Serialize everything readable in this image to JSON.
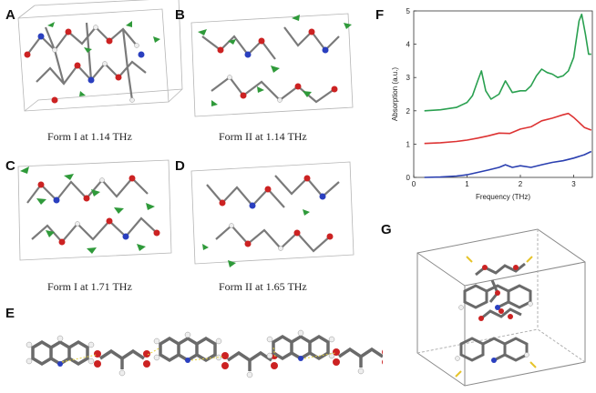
{
  "panels": {
    "a": {
      "letter": "A",
      "caption": "Form I at 1.14 THz"
    },
    "b": {
      "letter": "B",
      "caption": "Form II at 1.14 THz"
    },
    "c": {
      "letter": "C",
      "caption": "Form I at 1.71 THz"
    },
    "d": {
      "letter": "D",
      "caption": "Form II at 1.65 THz"
    },
    "e": {
      "letter": "E"
    },
    "f": {
      "letter": "F"
    },
    "g": {
      "letter": "G"
    }
  },
  "colors": {
    "atom_carbon": "#8a8a8a",
    "atom_hydrogen": "#eeeeee",
    "atom_oxygen": "#cc2222",
    "atom_nitrogen": "#2a3fbf",
    "vibration_arrow": "#2f9a3a",
    "hbond": "#e6d23a",
    "cell_box": "#9a9a9a"
  },
  "chart_data": {
    "type": "line",
    "xlabel": "Frequency (THz)",
    "ylabel": "Absorption (a.u.)",
    "xlim": [
      0,
      3.35
    ],
    "ylim": [
      0,
      5
    ],
    "xticks": [
      "0",
      "1",
      "2",
      "3"
    ],
    "yticks": [
      "0",
      "1",
      "2",
      "3",
      "4",
      "5"
    ],
    "grid": false,
    "series": [
      {
        "color": "#2aa050",
        "x": [
          0.2,
          0.5,
          0.8,
          1.0,
          1.1,
          1.2,
          1.27,
          1.35,
          1.45,
          1.6,
          1.72,
          1.85,
          2.0,
          2.1,
          2.2,
          2.3,
          2.4,
          2.5,
          2.6,
          2.7,
          2.8,
          2.9,
          3.0,
          3.1,
          3.15,
          3.22,
          3.28,
          3.33
        ],
        "y": [
          2.0,
          2.03,
          2.1,
          2.25,
          2.45,
          2.9,
          3.2,
          2.6,
          2.35,
          2.5,
          2.9,
          2.55,
          2.6,
          2.6,
          2.75,
          3.05,
          3.25,
          3.15,
          3.1,
          3.0,
          3.05,
          3.2,
          3.6,
          4.7,
          4.9,
          4.3,
          3.7,
          3.7
        ]
      },
      {
        "color": "#dd3333",
        "x": [
          0.2,
          0.5,
          0.8,
          1.0,
          1.2,
          1.4,
          1.6,
          1.8,
          2.0,
          2.2,
          2.4,
          2.6,
          2.8,
          2.9,
          3.0,
          3.1,
          3.2,
          3.33
        ],
        "y": [
          1.02,
          1.04,
          1.08,
          1.12,
          1.18,
          1.25,
          1.33,
          1.32,
          1.45,
          1.52,
          1.7,
          1.78,
          1.88,
          1.92,
          1.8,
          1.65,
          1.5,
          1.42
        ]
      },
      {
        "color": "#2a3fb0",
        "x": [
          0.2,
          0.5,
          0.8,
          1.0,
          1.2,
          1.4,
          1.6,
          1.72,
          1.85,
          2.0,
          2.2,
          2.4,
          2.6,
          2.8,
          3.0,
          3.2,
          3.33
        ],
        "y": [
          0.0,
          0.01,
          0.04,
          0.08,
          0.15,
          0.22,
          0.3,
          0.38,
          0.3,
          0.35,
          0.3,
          0.38,
          0.45,
          0.5,
          0.58,
          0.68,
          0.78
        ]
      }
    ]
  }
}
